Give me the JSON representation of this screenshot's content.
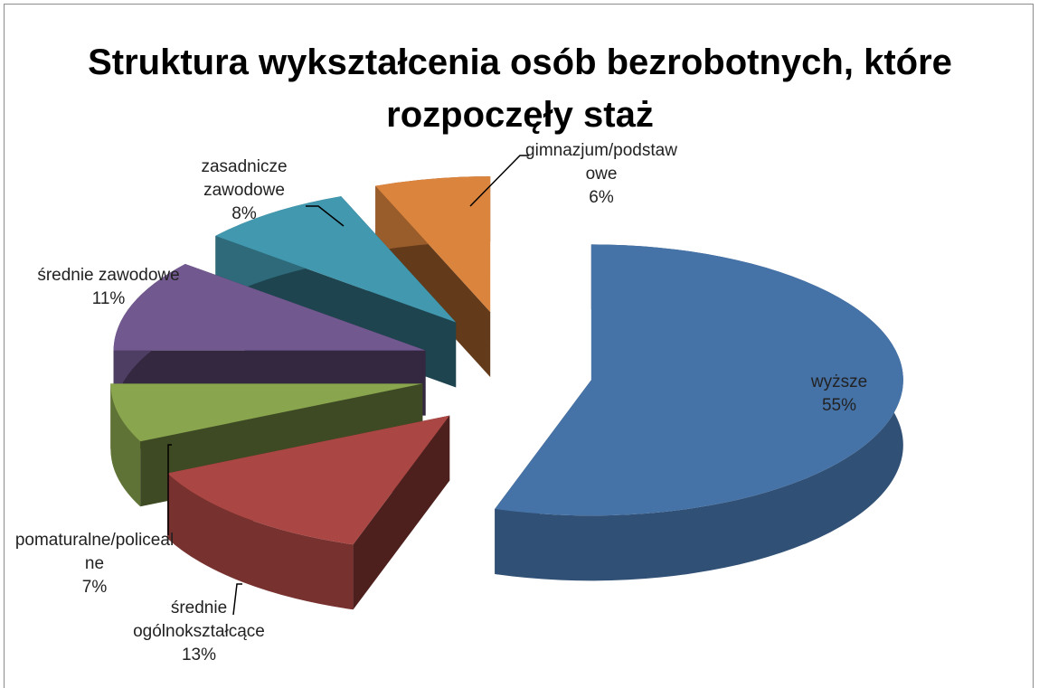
{
  "chart_data": {
    "type": "pie3d",
    "title": "Struktura wykształcenia osób bezrobotnych, które rozpoczęły staż",
    "categories": [
      "wyższe",
      "średnie ogólnokształcące",
      "pomaturalne/policealne",
      "średnie zawodowe",
      "zasadnicze zawodowe",
      "gimnazjum/podstawowe"
    ],
    "values": [
      55,
      13,
      7,
      11,
      8,
      6
    ],
    "value_labels": [
      "55%",
      "13%",
      "7%",
      "11%",
      "8%",
      "6%"
    ],
    "colors": [
      "#4572a7",
      "#aa4643",
      "#89a54e",
      "#71588f",
      "#4198af",
      "#db843d"
    ]
  }
}
